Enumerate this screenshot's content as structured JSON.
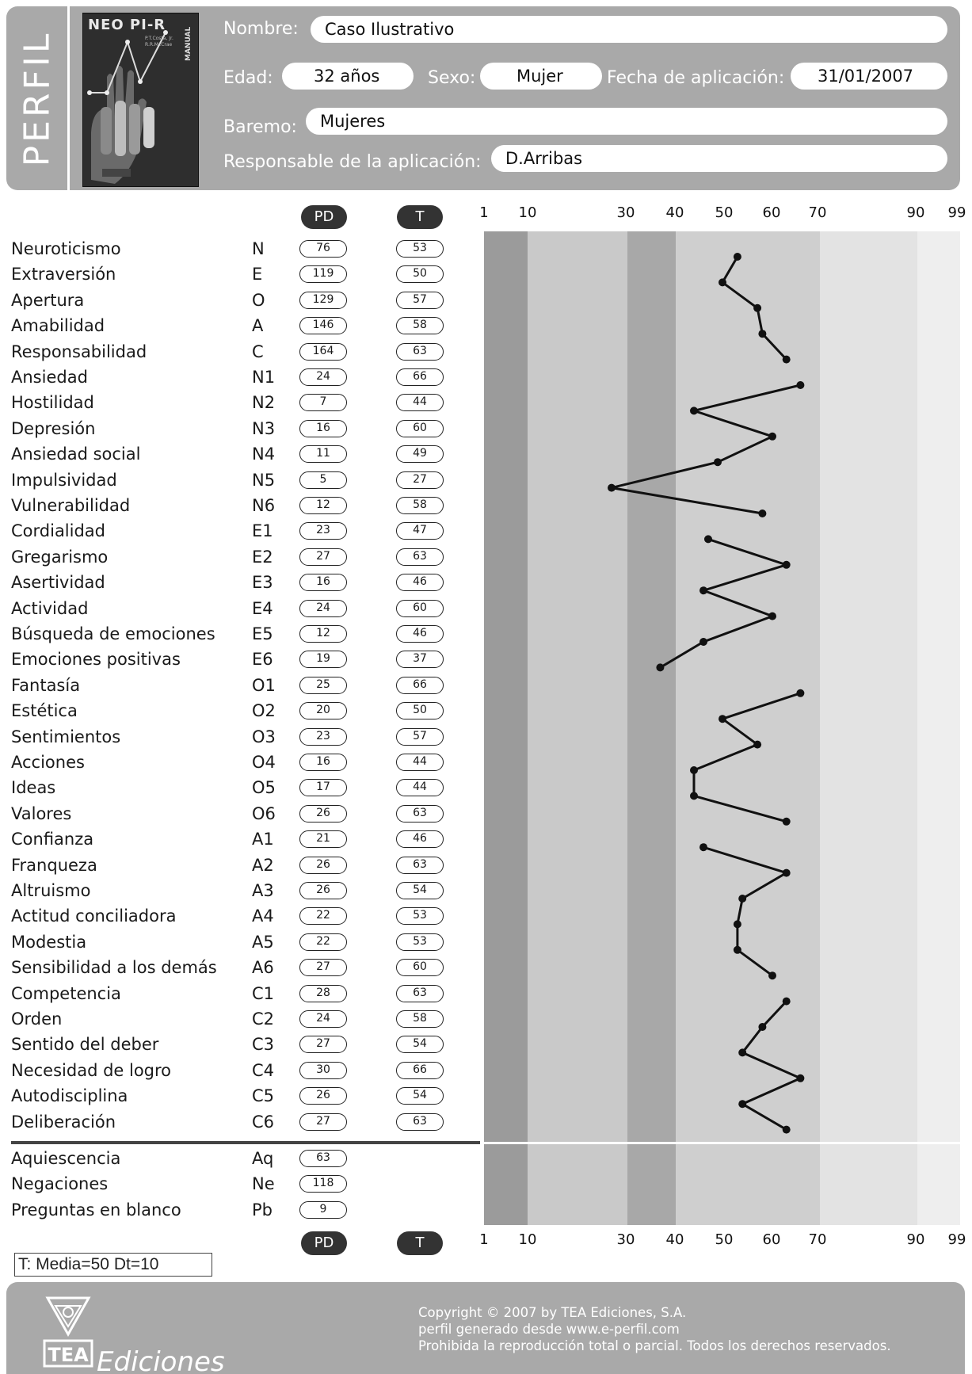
{
  "header": {
    "side_title": "PERFIL",
    "cover": {
      "title": "NEO PI-R",
      "authors": [
        "P.T.Costa, Jr.",
        "R.R.McCrae"
      ],
      "manual": "MANUAL"
    },
    "nombre_label": "Nombre:",
    "nombre": "Caso Ilustrativo",
    "edad_label": "Edad:",
    "edad": "32 años",
    "sexo_label": "Sexo:",
    "sexo": "Mujer",
    "fecha_label": "Fecha de aplicación:",
    "fecha": "31/01/2007",
    "baremo_label": "Baremo:",
    "baremo": "Mujeres",
    "responsable_label": "Responsable de la aplicación:",
    "responsable": "D.Arribas"
  },
  "columns": {
    "pd": "PD",
    "t": "T"
  },
  "scale": [
    "1",
    "10",
    "30",
    "40",
    "50",
    "60",
    "70",
    "90",
    "99"
  ],
  "rows": [
    {
      "label": "Neuroticismo",
      "code": "N",
      "pd": "76",
      "t": "53"
    },
    {
      "label": "Extraversión",
      "code": "E",
      "pd": "119",
      "t": "50"
    },
    {
      "label": "Apertura",
      "code": "O",
      "pd": "129",
      "t": "57"
    },
    {
      "label": "Amabilidad",
      "code": "A",
      "pd": "146",
      "t": "58"
    },
    {
      "label": "Responsabilidad",
      "code": "C",
      "pd": "164",
      "t": "63"
    },
    {
      "label": "Ansiedad",
      "code": "N1",
      "pd": "24",
      "t": "66"
    },
    {
      "label": "Hostilidad",
      "code": "N2",
      "pd": "7",
      "t": "44"
    },
    {
      "label": "Depresión",
      "code": "N3",
      "pd": "16",
      "t": "60"
    },
    {
      "label": "Ansiedad social",
      "code": "N4",
      "pd": "11",
      "t": "49"
    },
    {
      "label": "Impulsividad",
      "code": "N5",
      "pd": "5",
      "t": "27"
    },
    {
      "label": "Vulnerabilidad",
      "code": "N6",
      "pd": "12",
      "t": "58"
    },
    {
      "label": "Cordialidad",
      "code": "E1",
      "pd": "23",
      "t": "47"
    },
    {
      "label": "Gregarismo",
      "code": "E2",
      "pd": "27",
      "t": "63"
    },
    {
      "label": "Asertividad",
      "code": "E3",
      "pd": "16",
      "t": "46"
    },
    {
      "label": "Actividad",
      "code": "E4",
      "pd": "24",
      "t": "60"
    },
    {
      "label": "Búsqueda de emociones",
      "code": "E5",
      "pd": "12",
      "t": "46"
    },
    {
      "label": "Emociones positivas",
      "code": "E6",
      "pd": "19",
      "t": "37"
    },
    {
      "label": "Fantasía",
      "code": "O1",
      "pd": "25",
      "t": "66"
    },
    {
      "label": "Estética",
      "code": "O2",
      "pd": "20",
      "t": "50"
    },
    {
      "label": "Sentimientos",
      "code": "O3",
      "pd": "23",
      "t": "57"
    },
    {
      "label": "Acciones",
      "code": "O4",
      "pd": "16",
      "t": "44"
    },
    {
      "label": "Ideas",
      "code": "O5",
      "pd": "17",
      "t": "44"
    },
    {
      "label": "Valores",
      "code": "O6",
      "pd": "26",
      "t": "63"
    },
    {
      "label": "Confianza",
      "code": "A1",
      "pd": "21",
      "t": "46"
    },
    {
      "label": "Franqueza",
      "code": "A2",
      "pd": "26",
      "t": "63"
    },
    {
      "label": "Altruismo",
      "code": "A3",
      "pd": "26",
      "t": "54"
    },
    {
      "label": "Actitud conciliadora",
      "code": "A4",
      "pd": "22",
      "t": "53"
    },
    {
      "label": "Modestia",
      "code": "A5",
      "pd": "22",
      "t": "53"
    },
    {
      "label": "Sensibilidad a los demás",
      "code": "A6",
      "pd": "27",
      "t": "60"
    },
    {
      "label": "Competencia",
      "code": "C1",
      "pd": "28",
      "t": "63"
    },
    {
      "label": "Orden",
      "code": "C2",
      "pd": "24",
      "t": "58"
    },
    {
      "label": "Sentido del deber",
      "code": "C3",
      "pd": "27",
      "t": "54"
    },
    {
      "label": "Necesidad de logro",
      "code": "C4",
      "pd": "30",
      "t": "66"
    },
    {
      "label": "Autodisciplina",
      "code": "C5",
      "pd": "26",
      "t": "54"
    },
    {
      "label": "Deliberación",
      "code": "C6",
      "pd": "27",
      "t": "63"
    }
  ],
  "extra_rows": [
    {
      "label": "Aquiescencia",
      "code": "Aq",
      "pd": "63"
    },
    {
      "label": "Negaciones",
      "code": "Ne",
      "pd": "118"
    },
    {
      "label": "Preguntas en blanco",
      "code": "Pb",
      "pd": "9"
    }
  ],
  "profile_groups": [
    [
      0,
      4
    ],
    [
      5,
      10
    ],
    [
      11,
      16
    ],
    [
      17,
      22
    ],
    [
      23,
      28
    ],
    [
      29,
      34
    ]
  ],
  "note": "T: Media=50 Dt=10",
  "footer": {
    "logo_mark": "TEA",
    "logo_text": "Ediciones",
    "copyright": [
      "Copyright © 2007 by TEA Ediciones, S.A.",
      "perfil generado desde www.e-perfil.com",
      "Prohibida la reproducción total o parcial. Todos los derechos reservados."
    ]
  },
  "colors": {
    "header_bg": "#a9a9a9",
    "band_1_10": "#9b9b9b",
    "band_10_30": "#c9c9c9",
    "band_30_40": "#a8a8a8",
    "band_40_70": "#cfcfcf",
    "band_70_90": "#e3e3e3",
    "band_90_99": "#eeeeee",
    "line": "#111111"
  }
}
